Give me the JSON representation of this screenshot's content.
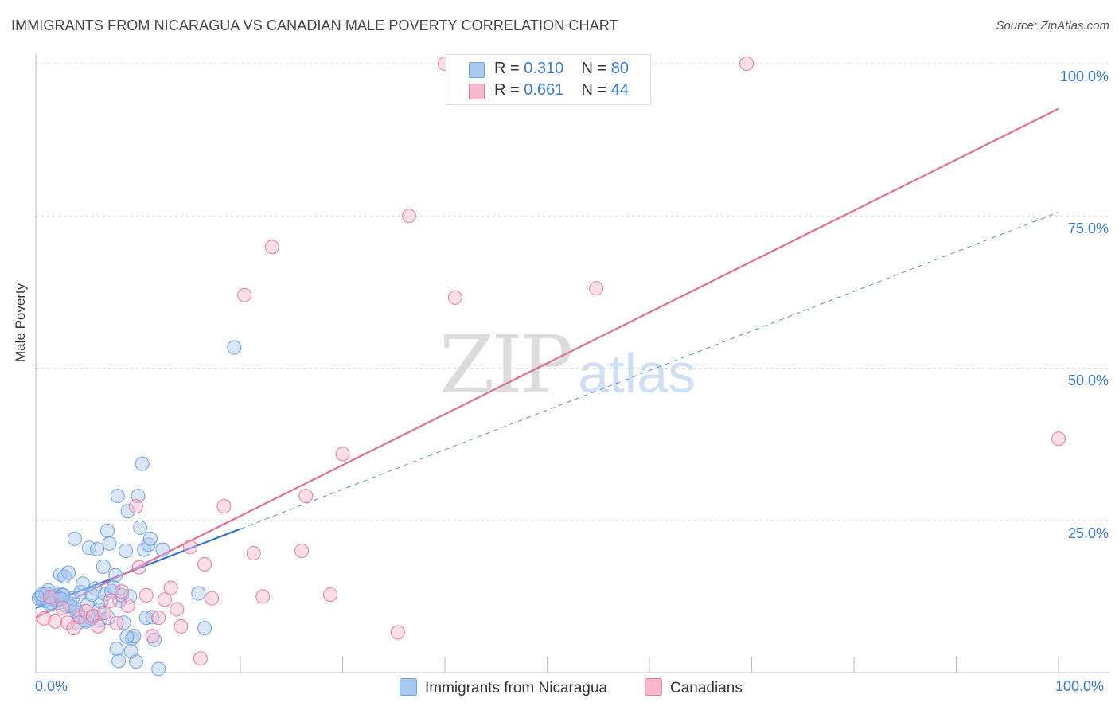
{
  "header": {
    "title": "IMMIGRANTS FROM NICARAGUA VS CANADIAN MALE POVERTY CORRELATION CHART",
    "source": "Source: ZipAtlas.com"
  },
  "watermark": {
    "zip": "ZIP",
    "atlas": "atlas"
  },
  "legend_top": [
    {
      "r_label": "R = ",
      "r_value": "0.310",
      "n_label": "N = ",
      "n_value": "80",
      "color": "#a8c8ef"
    },
    {
      "r_label": "R = ",
      "r_value": "0.661",
      "n_label": "N = ",
      "n_value": "44",
      "color": "#f6b8cc"
    }
  ],
  "legend_bottom": [
    {
      "label": "Immigrants from Nicaragua",
      "color": "#a8c8ef"
    },
    {
      "label": "Canadians",
      "color": "#f6b8cc"
    }
  ],
  "axes": {
    "ylabel": "Male Poverty",
    "x_ticks": [
      "0.0%",
      "100.0%"
    ],
    "y_ticks": [
      "100.0%",
      "75.0%",
      "50.0%",
      "25.0%"
    ]
  },
  "chart_data": {
    "type": "scatter",
    "title": "IMMIGRANTS FROM NICARAGUA VS CANADIAN MALE POVERTY CORRELATION CHART",
    "xlabel": "",
    "ylabel": "Male Poverty",
    "xlim": [
      0,
      100
    ],
    "ylim": [
      0,
      100
    ],
    "grid": true,
    "legend_position": "top-center",
    "series": [
      {
        "name": "Immigrants from Nicaragua",
        "color": "#6fa3e0",
        "fill": "#a8c8ef",
        "r": 0.31,
        "n": 80,
        "trend": {
          "x0": 0,
          "y0": 10.6,
          "x1": 20,
          "y1": 23.6,
          "extended_to_x": 100,
          "extended_y": 75.6
        },
        "points": [
          [
            0.5,
            12.4
          ],
          [
            0.8,
            11.8
          ],
          [
            1.0,
            12.9
          ],
          [
            1.2,
            13.5
          ],
          [
            1.4,
            11.2
          ],
          [
            1.6,
            12.1
          ],
          [
            1.8,
            13.0
          ],
          [
            2.0,
            12.6
          ],
          [
            2.2,
            11.5
          ],
          [
            2.4,
            16.1
          ],
          [
            2.6,
            12.8
          ],
          [
            2.8,
            15.8
          ],
          [
            3.0,
            10.9
          ],
          [
            3.2,
            16.4
          ],
          [
            3.4,
            11.3
          ],
          [
            3.6,
            12.2
          ],
          [
            3.8,
            22.0
          ],
          [
            4.0,
            9.9
          ],
          [
            4.2,
            9.4
          ],
          [
            4.4,
            13.2
          ],
          [
            4.6,
            14.6
          ],
          [
            4.8,
            8.6
          ],
          [
            5.0,
            11.1
          ],
          [
            5.2,
            20.5
          ],
          [
            5.4,
            8.9
          ],
          [
            5.6,
            9.2
          ],
          [
            5.8,
            13.8
          ],
          [
            6.0,
            20.3
          ],
          [
            6.2,
            10.3
          ],
          [
            6.4,
            11.6
          ],
          [
            6.6,
            17.4
          ],
          [
            6.8,
            12.9
          ],
          [
            7.0,
            23.3
          ],
          [
            7.2,
            21.2
          ],
          [
            7.4,
            13.4
          ],
          [
            7.6,
            14.0
          ],
          [
            7.8,
            16.0
          ],
          [
            8.0,
            29.0
          ],
          [
            8.2,
            11.8
          ],
          [
            8.4,
            12.7
          ],
          [
            8.6,
            8.2
          ],
          [
            8.8,
            20.0
          ],
          [
            9.0,
            26.5
          ],
          [
            9.2,
            12.5
          ],
          [
            9.4,
            5.6
          ],
          [
            9.6,
            6.0
          ],
          [
            9.8,
            1.8
          ],
          [
            10.0,
            29.0
          ],
          [
            10.2,
            23.8
          ],
          [
            10.4,
            34.3
          ],
          [
            10.6,
            20.2
          ],
          [
            10.8,
            9.0
          ],
          [
            11.0,
            21.0
          ],
          [
            11.2,
            22.0
          ],
          [
            11.4,
            9.1
          ],
          [
            11.6,
            5.4
          ],
          [
            12.0,
            0.6
          ],
          [
            12.4,
            20.2
          ],
          [
            15.9,
            13.0
          ],
          [
            16.5,
            7.3
          ],
          [
            19.4,
            53.4
          ],
          [
            1.1,
            11.9
          ],
          [
            1.7,
            12.3
          ],
          [
            2.1,
            12.0
          ],
          [
            2.7,
            12.7
          ],
          [
            3.3,
            11.0
          ],
          [
            4.1,
            8.1
          ],
          [
            4.9,
            8.4
          ],
          [
            5.5,
            12.8
          ],
          [
            6.3,
            8.6
          ],
          [
            7.1,
            9.0
          ],
          [
            7.9,
            3.9
          ],
          [
            8.1,
            1.9
          ],
          [
            8.9,
            5.9
          ],
          [
            9.3,
            3.5
          ],
          [
            0.3,
            12.2
          ],
          [
            0.6,
            12.8
          ],
          [
            1.5,
            11.4
          ],
          [
            2.5,
            12.1
          ],
          [
            3.9,
            10.4
          ]
        ]
      },
      {
        "name": "Canadians",
        "color": "#e87aa0",
        "fill": "#f6b8cc",
        "r": 0.661,
        "n": 44,
        "trend": {
          "x0": 0,
          "y0": 9.0,
          "x1": 100,
          "y1": 92.6
        },
        "points": [
          [
            0.8,
            8.9
          ],
          [
            1.4,
            12.4
          ],
          [
            1.9,
            8.4
          ],
          [
            2.6,
            10.6
          ],
          [
            3.1,
            8.2
          ],
          [
            3.7,
            7.3
          ],
          [
            4.3,
            9.1
          ],
          [
            4.9,
            10.1
          ],
          [
            5.6,
            9.3
          ],
          [
            6.1,
            7.6
          ],
          [
            6.7,
            9.8
          ],
          [
            7.3,
            11.8
          ],
          [
            7.9,
            8.1
          ],
          [
            8.4,
            13.3
          ],
          [
            9.0,
            11.0
          ],
          [
            9.8,
            27.3
          ],
          [
            10.1,
            17.3
          ],
          [
            10.8,
            12.7
          ],
          [
            11.4,
            6.0
          ],
          [
            12.0,
            9.0
          ],
          [
            12.6,
            12.0
          ],
          [
            13.2,
            13.9
          ],
          [
            13.8,
            10.4
          ],
          [
            14.2,
            7.6
          ],
          [
            15.1,
            20.6
          ],
          [
            16.1,
            2.3
          ],
          [
            16.5,
            17.8
          ],
          [
            17.2,
            12.2
          ],
          [
            18.4,
            27.3
          ],
          [
            20.4,
            62.0
          ],
          [
            21.3,
            19.6
          ],
          [
            22.2,
            12.5
          ],
          [
            23.1,
            69.9
          ],
          [
            26.0,
            20.0
          ],
          [
            26.4,
            29.0
          ],
          [
            28.8,
            12.8
          ],
          [
            30.0,
            35.9
          ],
          [
            35.4,
            6.6
          ],
          [
            36.5,
            75.0
          ],
          [
            40.0,
            100.0
          ],
          [
            41.0,
            61.6
          ],
          [
            54.8,
            63.1
          ],
          [
            69.5,
            100.0
          ],
          [
            100.0,
            38.4
          ]
        ]
      }
    ]
  }
}
